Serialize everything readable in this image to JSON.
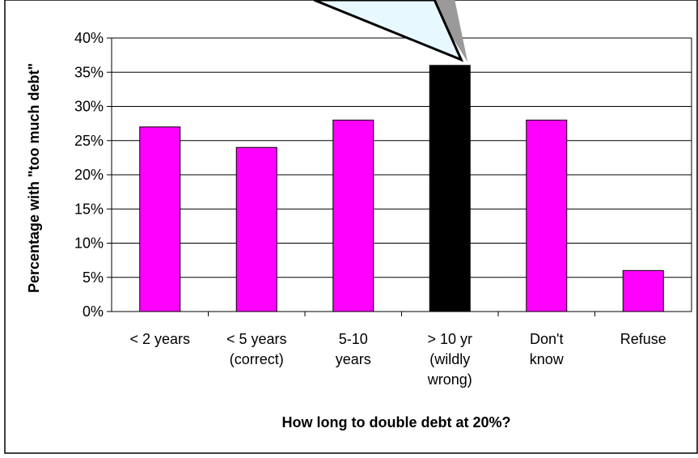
{
  "chart_data": {
    "type": "bar",
    "categories": [
      [
        "< 2 years"
      ],
      [
        "< 5 years",
        "(correct)"
      ],
      [
        "5-10",
        "years"
      ],
      [
        "> 10 yr",
        "(wildly",
        "wrong)"
      ],
      [
        "Don't",
        "know"
      ],
      [
        "Refuse"
      ]
    ],
    "values": [
      27,
      24,
      28,
      36,
      28,
      6
    ],
    "bar_colors": [
      "#ff00ff",
      "#ff00ff",
      "#ff00ff",
      "#000000",
      "#ff00ff",
      "#ff00ff"
    ],
    "xlabel": "How long to double debt at 20%?",
    "ylabel": "Percentage with \"too much debt\"",
    "ylim": [
      0,
      40
    ],
    "yticks": [
      "0%",
      "5%",
      "10%",
      "15%",
      "20%",
      "25%",
      "30%",
      "35%",
      "40%"
    ],
    "grid": true,
    "legend": "none",
    "callout_pointer": {
      "target_category": "> 10 yr (wildly wrong)",
      "fill": "#e8f8ff"
    }
  }
}
